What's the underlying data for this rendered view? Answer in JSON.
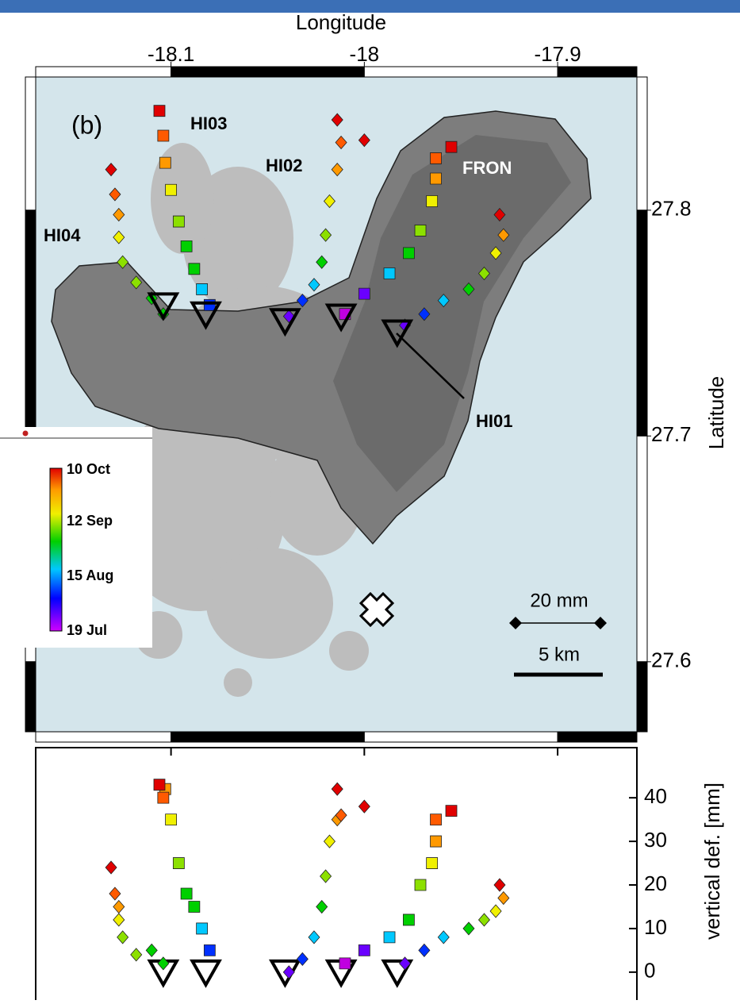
{
  "chart_data": [
    {
      "type": "map",
      "x_label": "Longitude",
      "y_label": "Latitude",
      "xlim": [
        -18.17,
        -17.859
      ],
      "ylim": [
        27.569,
        27.859
      ],
      "xticks": [
        -18.1,
        -18,
        -17.9
      ],
      "yticks": [
        27.6,
        27.7,
        27.8
      ],
      "annotations": [
        "(b)",
        "20 mm",
        "5 km"
      ],
      "colorbar_labels": [
        "10 Oct",
        "12 Sep",
        "15 Aug",
        "19 Jul"
      ],
      "series": [
        {
          "name": "HI04",
          "marker": "diamond",
          "x": [
            -18.104,
            -18.11,
            -18.118,
            -18.125,
            -18.127,
            -18.127,
            -18.129,
            -18.131
          ],
          "y": [
            27.754,
            27.761,
            27.768,
            27.777,
            27.788,
            27.798,
            27.807,
            27.818
          ],
          "colors": [
            "#00d000",
            "#00d000",
            "#8ce000",
            "#8ce000",
            "#f0f000",
            "#ff9900",
            "#ff5a00",
            "#e00000"
          ],
          "station": [
            -18.104,
            27.758
          ]
        },
        {
          "name": "HI03",
          "marker": "square",
          "x": [
            -18.08,
            -18.084,
            -18.088,
            -18.092,
            -18.096,
            -18.1,
            -18.103,
            -18.104,
            -18.106
          ],
          "y": [
            27.758,
            27.765,
            27.774,
            27.784,
            27.795,
            27.809,
            27.821,
            27.833,
            27.844
          ],
          "colors": [
            "#0030ff",
            "#00c8ff",
            "#00d000",
            "#00d000",
            "#8ce000",
            "#f0f000",
            "#ff9900",
            "#ff5a00",
            "#e00000"
          ],
          "station": [
            -18.082,
            27.754
          ]
        },
        {
          "name": "HI02",
          "marker": "diamond",
          "x": [
            -18.039,
            -18.032,
            -18.026,
            -18.022,
            -18.02,
            -18.018,
            -18.014,
            -18.012,
            -18.014,
            -18
          ],
          "y": [
            27.753,
            27.76,
            27.767,
            27.777,
            27.789,
            27.804,
            27.818,
            27.83,
            27.84,
            27.831
          ],
          "colors": [
            "#6a00ff",
            "#0030ff",
            "#00c8ff",
            "#00d000",
            "#8ce000",
            "#f0f000",
            "#ff9900",
            "#ff5a00",
            "#e00000",
            "#e00000"
          ],
          "station": [
            -18.041,
            27.751
          ]
        },
        {
          "name": "FRON",
          "marker": "square",
          "x": [
            -18.01,
            -18,
            -17.987,
            -17.977,
            -17.971,
            -17.965,
            -17.963,
            -17.963,
            -17.955
          ],
          "y": [
            27.754,
            27.763,
            27.772,
            27.781,
            27.791,
            27.804,
            27.814,
            27.823,
            27.828
          ],
          "colors": [
            "#c000e0",
            "#6a00ff",
            "#00c8ff",
            "#00d000",
            "#8ce000",
            "#f0f000",
            "#ff9900",
            "#ff5a00",
            "#e00000"
          ],
          "station": [
            -18.012,
            27.753
          ]
        },
        {
          "name": "HI01",
          "marker": "diamond",
          "x": [
            -17.979,
            -17.969,
            -17.959,
            -17.946,
            -17.938,
            -17.932,
            -17.928,
            -17.93
          ],
          "y": [
            27.749,
            27.754,
            27.76,
            27.765,
            27.772,
            27.781,
            27.789,
            27.798
          ],
          "colors": [
            "#6a00ff",
            "#0030ff",
            "#00c8ff",
            "#00d000",
            "#8ce000",
            "#f0f000",
            "#ff9900",
            "#e00000"
          ],
          "station": [
            -17.983,
            27.746
          ]
        }
      ]
    },
    {
      "type": "scatter",
      "y_label": "vertical def. [mm]",
      "xlim": [
        -18.17,
        -17.859
      ],
      "ylim": [
        -6.4,
        51.5
      ],
      "xticks": [
        -18.1,
        -18,
        -17.9
      ],
      "yticks": [
        0,
        10,
        20,
        30,
        40
      ],
      "stations": [
        -18.104,
        -18.082,
        -18.041,
        -18.012,
        -17.983
      ],
      "series": [
        {
          "marker": "diamond",
          "x": [
            -18.104,
            -18.11,
            -18.118,
            -18.125,
            -18.127,
            -18.127,
            -18.129,
            -18.131
          ],
          "values": [
            2,
            5,
            4,
            8,
            12,
            15,
            18,
            24
          ],
          "colors": [
            "#00d000",
            "#00d000",
            "#8ce000",
            "#8ce000",
            "#f0f000",
            "#ff9900",
            "#ff5a00",
            "#e00000"
          ]
        },
        {
          "marker": "square",
          "x": [
            -18.08,
            -18.084,
            -18.088,
            -18.092,
            -18.096,
            -18.1,
            -18.103,
            -18.104,
            -18.106
          ],
          "values": [
            5,
            10,
            15,
            18,
            25,
            35,
            42,
            40,
            43
          ],
          "colors": [
            "#0030ff",
            "#00c8ff",
            "#00d000",
            "#00d000",
            "#8ce000",
            "#f0f000",
            "#ff9900",
            "#ff5a00",
            "#e00000"
          ]
        },
        {
          "marker": "diamond",
          "x": [
            -18.039,
            -18.032,
            -18.026,
            -18.022,
            -18.02,
            -18.018,
            -18.014,
            -18.012,
            -18.014,
            -18
          ],
          "values": [
            0,
            3,
            8,
            15,
            22,
            30,
            35,
            36,
            42,
            38
          ],
          "colors": [
            "#6a00ff",
            "#0030ff",
            "#00c8ff",
            "#00d000",
            "#8ce000",
            "#f0f000",
            "#ff9900",
            "#ff5a00",
            "#e00000",
            "#e00000"
          ]
        },
        {
          "marker": "square",
          "x": [
            -18.01,
            -18,
            -17.987,
            -17.977,
            -17.971,
            -17.965,
            -17.963,
            -17.963,
            -17.955
          ],
          "values": [
            2,
            5,
            8,
            12,
            20,
            25,
            30,
            35,
            37
          ],
          "colors": [
            "#c000e0",
            "#6a00ff",
            "#00c8ff",
            "#00d000",
            "#8ce000",
            "#f0f000",
            "#ff9900",
            "#ff5a00",
            "#e00000"
          ]
        },
        {
          "marker": "diamond",
          "x": [
            -17.979,
            -17.969,
            -17.959,
            -17.946,
            -17.938,
            -17.932,
            -17.928,
            -17.93
          ],
          "values": [
            2,
            5,
            8,
            10,
            12,
            14,
            17,
            20
          ],
          "colors": [
            "#6a00ff",
            "#0030ff",
            "#00c8ff",
            "#00d000",
            "#8ce000",
            "#f0f000",
            "#ff9900",
            "#e00000"
          ]
        }
      ]
    }
  ]
}
